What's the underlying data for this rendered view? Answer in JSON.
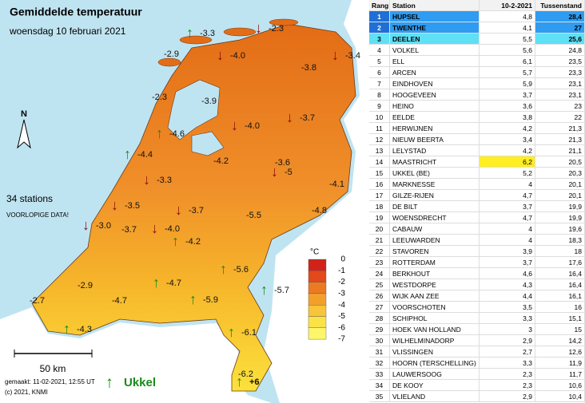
{
  "map": {
    "title": "Gemiddelde temperatuur",
    "subtitle": "woensdag 10 februari 2021",
    "stations_note": "34 stations",
    "provisional_note": "VOORLOPIGE DATA!",
    "north": "N",
    "scale": "50 km",
    "made": "gemaakt: 11-02-2021, 12:55 UT",
    "copyright": "(c) 2021, KNMI",
    "ukkel": "Ukkel",
    "legend": {
      "unit": "°C",
      "labels": [
        "0",
        "-1",
        "-2",
        "-3",
        "-4",
        "-5",
        "-6",
        "-7"
      ]
    },
    "labels": [
      "-3.3",
      "-2.3",
      "-2.9",
      "-4.0",
      "-3.4",
      "-3.8",
      "-2.3",
      "-3.9",
      "-3.7",
      "-4.0",
      "-4.6",
      "-4.4",
      "-4.2",
      "-3.6",
      "-5",
      "-3.3",
      "-4.1",
      "-3.5",
      "-3.7",
      "-5.5",
      "-4.8",
      "-3.0",
      "-3.7",
      "-4.0",
      "-4.2",
      "-5.6",
      "-4.7",
      "-2.9",
      "-5.7",
      "-2.7",
      "-4.7",
      "-5.9",
      "-4.3",
      "-6.1",
      "-6.2",
      "+6"
    ]
  },
  "table": {
    "header": [
      "Rang",
      "Station",
      "10-2-2021",
      "Tussenstand"
    ],
    "rows": [
      [
        "1",
        "HUPSEL",
        "4,8",
        "28,4"
      ],
      [
        "2",
        "TWENTHE",
        "4,1",
        "27"
      ],
      [
        "3",
        "DEELEN",
        "5,5",
        "25,6"
      ],
      [
        "4",
        "VOLKEL",
        "5,6",
        "24,8"
      ],
      [
        "5",
        "ELL",
        "6,1",
        "23,5"
      ],
      [
        "6",
        "ARCEN",
        "5,7",
        "23,3"
      ],
      [
        "7",
        "EINDHOVEN",
        "5,9",
        "23,1"
      ],
      [
        "8",
        "HOOGEVEEN",
        "3,7",
        "23,1"
      ],
      [
        "9",
        "HEINO",
        "3,6",
        "23"
      ],
      [
        "10",
        "EELDE",
        "3,8",
        "22"
      ],
      [
        "11",
        "HERWIJNEN",
        "4,2",
        "21,3"
      ],
      [
        "12",
        "NIEUW BEERTA",
        "3,4",
        "21,3"
      ],
      [
        "13",
        "LELYSTAD",
        "4,2",
        "21,1"
      ],
      [
        "14",
        "MAASTRICHT",
        "6,2",
        "20,5"
      ],
      [
        "15",
        "UKKEL (BE)",
        "5,2",
        "20,3"
      ],
      [
        "16",
        "MARKNESSE",
        "4",
        "20,1"
      ],
      [
        "17",
        "GILZE-RIJEN",
        "4,7",
        "20,1"
      ],
      [
        "18",
        "DE BILT",
        "3,7",
        "19,9"
      ],
      [
        "19",
        "WOENSDRECHT",
        "4,7",
        "19,9"
      ],
      [
        "20",
        "CABAUW",
        "4",
        "19,6"
      ],
      [
        "21",
        "LEEUWARDEN",
        "4",
        "18,3"
      ],
      [
        "22",
        "STAVOREN",
        "3,9",
        "18"
      ],
      [
        "23",
        "ROTTERDAM",
        "3,7",
        "17,6"
      ],
      [
        "24",
        "BERKHOUT",
        "4,6",
        "16,4"
      ],
      [
        "25",
        "WESTDORPE",
        "4,3",
        "16,4"
      ],
      [
        "26",
        "WIJK AAN ZEE",
        "4,4",
        "16,1"
      ],
      [
        "27",
        "VOORSCHOTEN",
        "3,5",
        "16"
      ],
      [
        "28",
        "SCHIPHOL",
        "3,3",
        "15,1"
      ],
      [
        "29",
        "HOEK VAN HOLLAND",
        "3",
        "15"
      ],
      [
        "30",
        "WILHELMINADORP",
        "2,9",
        "14,2"
      ],
      [
        "31",
        "VLISSINGEN",
        "2,7",
        "12,6"
      ],
      [
        "32",
        "HOORN (TERSCHELLING)",
        "3,3",
        "11,9"
      ],
      [
        "33",
        "LAUWERSOOG",
        "2,3",
        "11,7"
      ],
      [
        "34",
        "DE KOOY",
        "2,3",
        "10,6"
      ],
      [
        "35",
        "VLIELAND",
        "2,9",
        "10,4"
      ]
    ]
  }
}
